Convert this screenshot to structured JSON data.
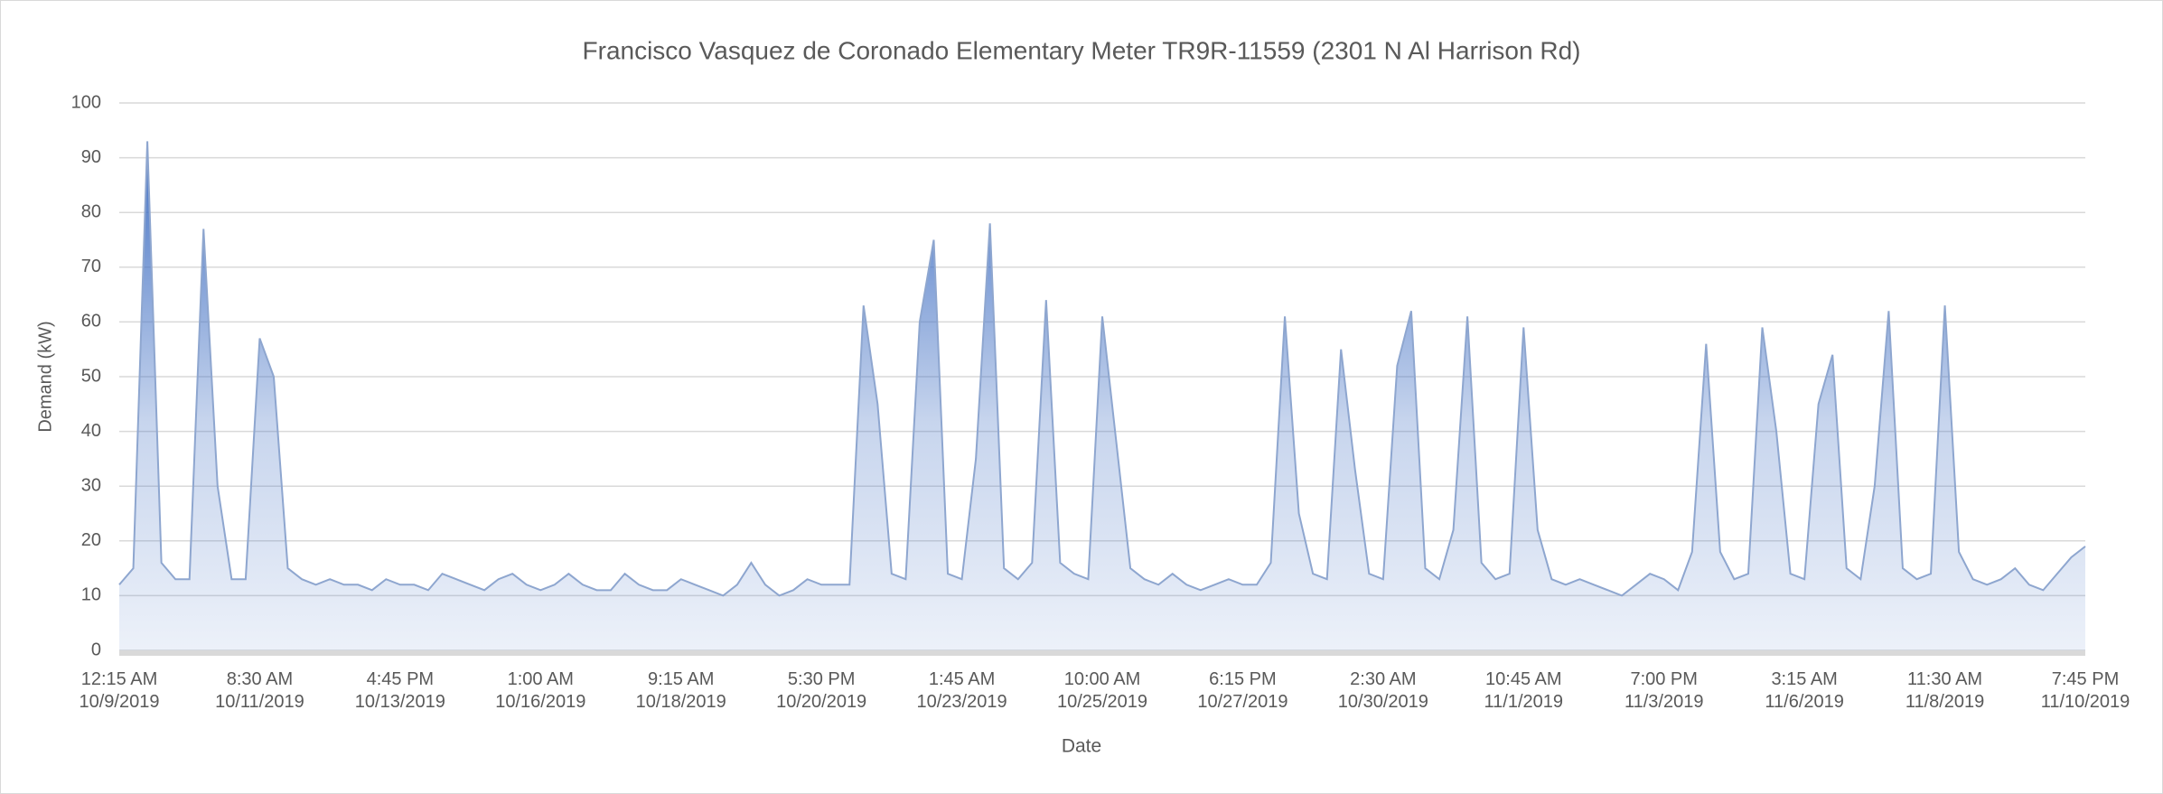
{
  "chart_data": {
    "type": "area",
    "title": "Francisco Vasquez de Coronado Elementary Meter TR9R-11559 (2301 N Al Harrison Rd)",
    "x_label": "Date",
    "y_label": "Demand (kW)",
    "categories": [
      "12:15 AM\n10/9/2019",
      null,
      null,
      null,
      null,
      null,
      null,
      null,
      null,
      null,
      "8:30 AM\n10/11/2019",
      null,
      null,
      null,
      null,
      null,
      null,
      null,
      null,
      null,
      "4:45 PM\n10/13/2019",
      null,
      null,
      null,
      null,
      null,
      null,
      null,
      null,
      null,
      "1:00 AM\n10/16/2019",
      null,
      null,
      null,
      null,
      null,
      null,
      null,
      null,
      null,
      "9:15 AM\n10/18/2019",
      null,
      null,
      null,
      null,
      null,
      null,
      null,
      null,
      null,
      "5:30 PM\n10/20/2019",
      null,
      null,
      null,
      null,
      null,
      null,
      null,
      null,
      null,
      "1:45 AM\n10/23/2019",
      null,
      null,
      null,
      null,
      null,
      null,
      null,
      null,
      null,
      "10:00 AM\n10/25/2019",
      null,
      null,
      null,
      null,
      null,
      null,
      null,
      null,
      null,
      "6:15 PM\n10/27/2019",
      null,
      null,
      null,
      null,
      null,
      null,
      null,
      null,
      null,
      "2:30 AM\n10/30/2019",
      null,
      null,
      null,
      null,
      null,
      null,
      null,
      null,
      null,
      "10:45 AM\n11/1/2019",
      null,
      null,
      null,
      null,
      null,
      null,
      null,
      null,
      null,
      "7:00 PM\n11/3/2019",
      null,
      null,
      null,
      null,
      null,
      null,
      null,
      null,
      null,
      "3:15 AM\n11/6/2019",
      null,
      null,
      null,
      null,
      null,
      null,
      null,
      null,
      null,
      "11:30 AM\n11/8/2019",
      null,
      null,
      null,
      null,
      null,
      null,
      null,
      null,
      null,
      "7:45 PM\n11/10/2019"
    ],
    "values": [
      12,
      15,
      93,
      16,
      13,
      13,
      77,
      30,
      13,
      13,
      57,
      50,
      15,
      13,
      12,
      13,
      12,
      12,
      11,
      13,
      12,
      12,
      11,
      14,
      13,
      12,
      11,
      13,
      14,
      12,
      11,
      12,
      14,
      12,
      11,
      11,
      14,
      12,
      11,
      11,
      13,
      12,
      11,
      10,
      12,
      16,
      12,
      10,
      11,
      13,
      12,
      12,
      12,
      63,
      45,
      14,
      13,
      60,
      75,
      14,
      13,
      35,
      78,
      15,
      13,
      16,
      64,
      16,
      14,
      13,
      61,
      38,
      15,
      13,
      12,
      14,
      12,
      11,
      12,
      13,
      12,
      12,
      16,
      61,
      25,
      14,
      13,
      55,
      33,
      14,
      13,
      52,
      62,
      15,
      13,
      22,
      61,
      16,
      13,
      14,
      59,
      22,
      13,
      12,
      13,
      12,
      11,
      10,
      12,
      14,
      13,
      11,
      18,
      56,
      18,
      13,
      14,
      59,
      40,
      14,
      13,
      45,
      54,
      15,
      13,
      30,
      62,
      15,
      13,
      14,
      63,
      18,
      13,
      12,
      13,
      15,
      12,
      11,
      14,
      17,
      19
    ],
    "color": "#4472c4",
    "line_color": "#8ea6cf",
    "ylim": [
      0,
      100
    ],
    "yticks": [
      0,
      10,
      20,
      30,
      40,
      50,
      60,
      70,
      80,
      90,
      100
    ],
    "grid": true
  }
}
